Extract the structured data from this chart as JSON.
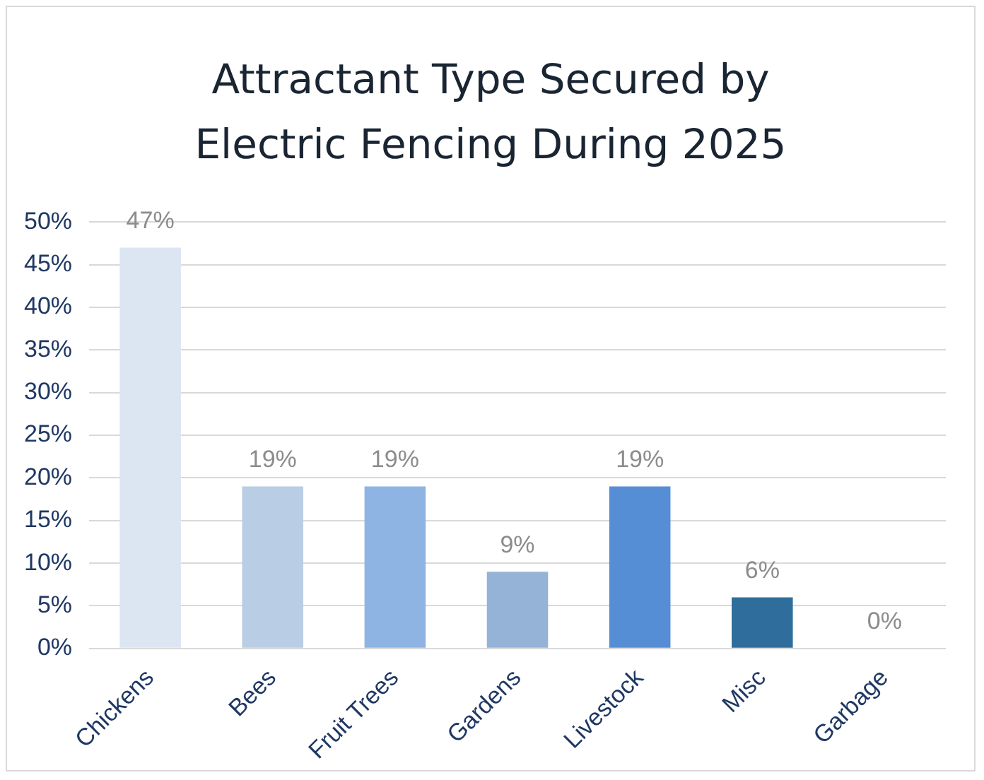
{
  "chart_data": {
    "type": "bar",
    "title": "Attractant Type Secured by Electric Fencing During 2025",
    "categories": [
      "Chickens",
      "Bees",
      "Fruit Trees",
      "Gardens",
      "Livestock",
      "Misc",
      "Garbage"
    ],
    "values": [
      47,
      19,
      19,
      9,
      19,
      6,
      0
    ],
    "colors": [
      "#dce6f2",
      "#b9cde5",
      "#8eb4e3",
      "#95b3d7",
      "#558ed5",
      "#2f6e9c",
      "#1f4e79"
    ],
    "value_labels": [
      "47%",
      "19%",
      "19%",
      "9%",
      "19%",
      "6%",
      "0%"
    ],
    "ylim": [
      0,
      50
    ],
    "yticks": [
      {
        "value": 0,
        "label": "0%"
      },
      {
        "value": 5,
        "label": "5%"
      },
      {
        "value": 10,
        "label": "10%"
      },
      {
        "value": 15,
        "label": "15%"
      },
      {
        "value": 20,
        "label": "20%"
      },
      {
        "value": 25,
        "label": "25%"
      },
      {
        "value": 30,
        "label": "30%"
      },
      {
        "value": 35,
        "label": "35%"
      },
      {
        "value": 40,
        "label": "40%"
      },
      {
        "value": 45,
        "label": "45%"
      },
      {
        "value": 50,
        "label": "50%"
      }
    ],
    "grid": "y",
    "legend": false
  }
}
